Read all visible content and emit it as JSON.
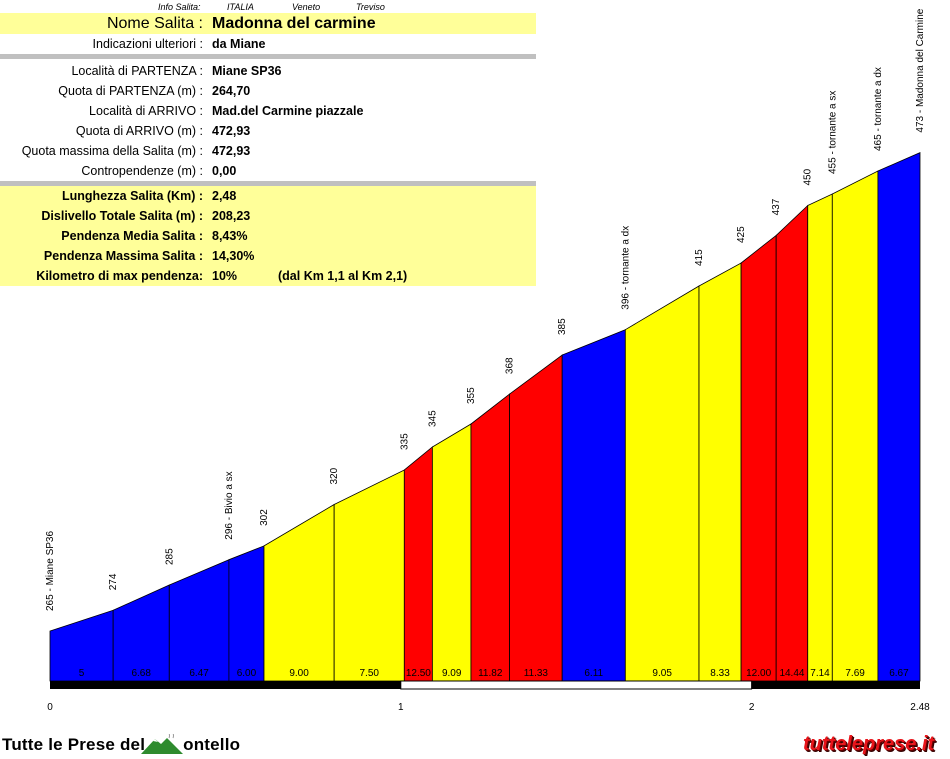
{
  "breadcrumb": [
    "Info Salita:",
    "ITALIA",
    "Veneto",
    "Treviso"
  ],
  "info": {
    "title": {
      "label": "Nome Salita :",
      "value": "Madonna del carmine"
    },
    "rows_top": [
      {
        "label": "Indicazioni ulteriori :",
        "value": "da Miane"
      }
    ],
    "rows_mid": [
      {
        "label": "Località di PARTENZA :",
        "value": "Miane SP36"
      },
      {
        "label": "Quota di PARTENZA (m) :",
        "value": "264,70"
      },
      {
        "label": "Località di ARRIVO :",
        "value": "Mad.del Carmine piazzale"
      },
      {
        "label": "Quota di ARRIVO (m) :",
        "value": "472,93"
      },
      {
        "label": "Quota massima della Salita (m) :",
        "value": "472,93"
      },
      {
        "label": "Contropendenze (m) :",
        "value": "0,00"
      }
    ],
    "rows_bottom": [
      {
        "label": "Lunghezza Salita (Km) :",
        "value": "2,48"
      },
      {
        "label": "Dislivello Totale Salita (m) :",
        "value": "208,23"
      },
      {
        "label": "Pendenza Media Salita :",
        "value": "8,43%"
      },
      {
        "label": "Pendenza Massima Salita :",
        "value": "14,30%"
      },
      {
        "label": "Kilometro di max pendenza:",
        "value": "10%",
        "extra": "(dal Km 1,1 al Km 2,1)"
      }
    ]
  },
  "chart_data": {
    "type": "area",
    "xlabel": "",
    "ylabel": "",
    "x_ticks": [
      "0",
      "1",
      "2",
      "2.48"
    ],
    "xlim": [
      0,
      2.48
    ],
    "colors": {
      "blue": "#0000ff",
      "yellow": "#ffff00",
      "red": "#ff0000"
    },
    "points": [
      {
        "km": 0.0,
        "alt": 265,
        "label": "265 - Miane SP36"
      },
      {
        "km": 0.18,
        "alt": 274,
        "label": "274"
      },
      {
        "km": 0.34,
        "alt": 285,
        "label": "285"
      },
      {
        "km": 0.51,
        "alt": 296,
        "label": "296 - Bivio a sx"
      },
      {
        "km": 0.61,
        "alt": 302,
        "label": "302"
      },
      {
        "km": 0.81,
        "alt": 320,
        "label": "320"
      },
      {
        "km": 1.01,
        "alt": 335,
        "label": "335"
      },
      {
        "km": 1.09,
        "alt": 345,
        "label": "345"
      },
      {
        "km": 1.2,
        "alt": 355,
        "label": "355"
      },
      {
        "km": 1.31,
        "alt": 368,
        "label": "368"
      },
      {
        "km": 1.46,
        "alt": 385,
        "label": "385"
      },
      {
        "km": 1.64,
        "alt": 396,
        "label": "396 - tornante a dx"
      },
      {
        "km": 1.85,
        "alt": 415,
        "label": "415"
      },
      {
        "km": 1.97,
        "alt": 425,
        "label": "425"
      },
      {
        "km": 2.07,
        "alt": 437,
        "label": "437"
      },
      {
        "km": 2.16,
        "alt": 450,
        "label": "450"
      },
      {
        "km": 2.23,
        "alt": 455,
        "label": "455 - tornante a sx"
      },
      {
        "km": 2.36,
        "alt": 465,
        "label": "465 - tornante a dx"
      },
      {
        "km": 2.48,
        "alt": 473,
        "label": "473 - Madonna del Carmine"
      }
    ],
    "segments": [
      {
        "grade": "5",
        "color": "blue"
      },
      {
        "grade": "6.68",
        "color": "blue"
      },
      {
        "grade": "6.47",
        "color": "blue"
      },
      {
        "grade": "6.00",
        "color": "blue"
      },
      {
        "grade": "9.00",
        "color": "yellow"
      },
      {
        "grade": "7.50",
        "color": "yellow"
      },
      {
        "grade": "12.50",
        "color": "red"
      },
      {
        "grade": "9.09",
        "color": "yellow"
      },
      {
        "grade": "11.82",
        "color": "red"
      },
      {
        "grade": "11.33",
        "color": "red"
      },
      {
        "grade": "6.11",
        "color": "blue"
      },
      {
        "grade": "9.05",
        "color": "yellow"
      },
      {
        "grade": "8.33",
        "color": "yellow"
      },
      {
        "grade": "12.00",
        "color": "red"
      },
      {
        "grade": "14.44",
        "color": "red"
      },
      {
        "grade": "7.14",
        "color": "yellow"
      },
      {
        "grade": "7.69",
        "color": "yellow"
      },
      {
        "grade": "6.67",
        "color": "blue"
      }
    ]
  },
  "footer": {
    "left_before": "Tutte le Prese del",
    "left_after": "ontello",
    "right": "tutteleprese.it"
  }
}
